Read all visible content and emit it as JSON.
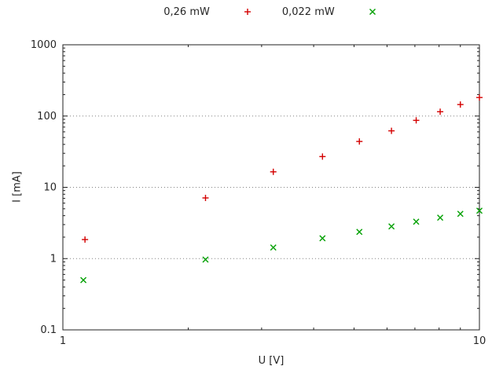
{
  "chart_data": {
    "type": "scatter",
    "title": "",
    "xlabel": "U [V]",
    "ylabel": "I [mA]",
    "x_scale": "log",
    "y_scale": "log",
    "xlim": [
      1,
      10
    ],
    "ylim": [
      0.1,
      1000
    ],
    "grid": "horizontal dotted gridlines at y = 1, 10, 100",
    "legend_position": "top-center-outside",
    "x_ticks": [
      {
        "v": 1,
        "label": "1"
      },
      {
        "v": 10,
        "label": "10"
      }
    ],
    "y_ticks": [
      {
        "v": 0.1,
        "label": "0.1"
      },
      {
        "v": 1,
        "label": "1"
      },
      {
        "v": 10,
        "label": "10"
      },
      {
        "v": 100,
        "label": "100"
      },
      {
        "v": 1000,
        "label": "1000"
      }
    ],
    "colors": {
      "axis": "#202020",
      "grid": "#808080",
      "text": "#262626",
      "background": "#ffffff"
    },
    "series": [
      {
        "name": "0,26 mW",
        "marker": "plus",
        "color": "#d40000",
        "points": [
          [
            1.13,
            1.85
          ],
          [
            2.2,
            7.1
          ],
          [
            3.2,
            16.5
          ],
          [
            4.2,
            27
          ],
          [
            5.15,
            44
          ],
          [
            6.15,
            62
          ],
          [
            7.05,
            87
          ],
          [
            8.05,
            115
          ],
          [
            9.0,
            145
          ],
          [
            10.0,
            182
          ]
        ]
      },
      {
        "name": "0,022 mW",
        "marker": "cross",
        "color": "#00a000",
        "points": [
          [
            1.12,
            0.5
          ],
          [
            2.2,
            0.97
          ],
          [
            3.2,
            1.43
          ],
          [
            4.2,
            1.93
          ],
          [
            5.15,
            2.37
          ],
          [
            6.15,
            2.83
          ],
          [
            7.05,
            3.3
          ],
          [
            8.05,
            3.75
          ],
          [
            9.0,
            4.25
          ],
          [
            10.0,
            4.7
          ]
        ]
      }
    ]
  }
}
